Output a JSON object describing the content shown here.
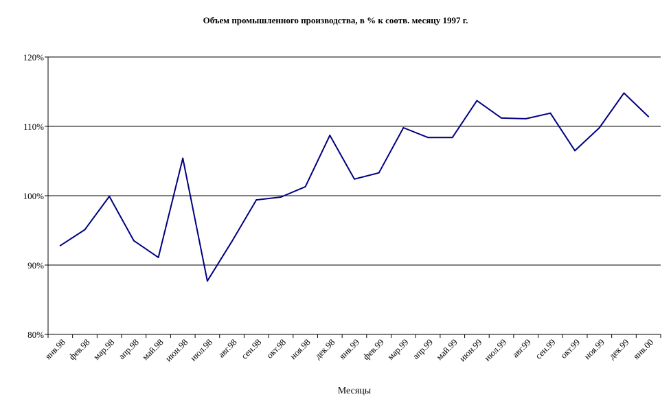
{
  "chart_data": {
    "type": "line",
    "title": "Объем промышленного производства, в % к соотв. месяцу 1997 г.",
    "xlabel": "Месяцы",
    "ylabel": "",
    "ylim": [
      0.8,
      1.2
    ],
    "yticks": [
      "80%",
      "90%",
      "100%",
      "110%",
      "120%"
    ],
    "grid": "horizontal",
    "legend": "none",
    "categories": [
      "янв.98",
      "фев.98",
      "мар.98",
      "апр.98",
      "май.98",
      "июн.98",
      "июл.98",
      "авг.98",
      "сен.98",
      "окт.98",
      "ноя.98",
      "дек.98",
      "янв.99",
      "фев.99",
      "мар.99",
      "апр.99",
      "май.99",
      "июн.99",
      "июл.99",
      "авг.99",
      "сен.99",
      "окт.99",
      "ноя.99",
      "дек.99",
      "янв.00"
    ],
    "series": [
      {
        "values": [
          0.928,
          0.951,
          0.999,
          0.935,
          0.911,
          1.054,
          0.877,
          0.934,
          0.994,
          0.998,
          1.013,
          1.087,
          1.024,
          1.033,
          1.098,
          1.084,
          1.084,
          1.137,
          1.112,
          1.111,
          1.119,
          1.065,
          1.098,
          1.148,
          1.114
        ],
        "color": "#000080"
      }
    ]
  }
}
